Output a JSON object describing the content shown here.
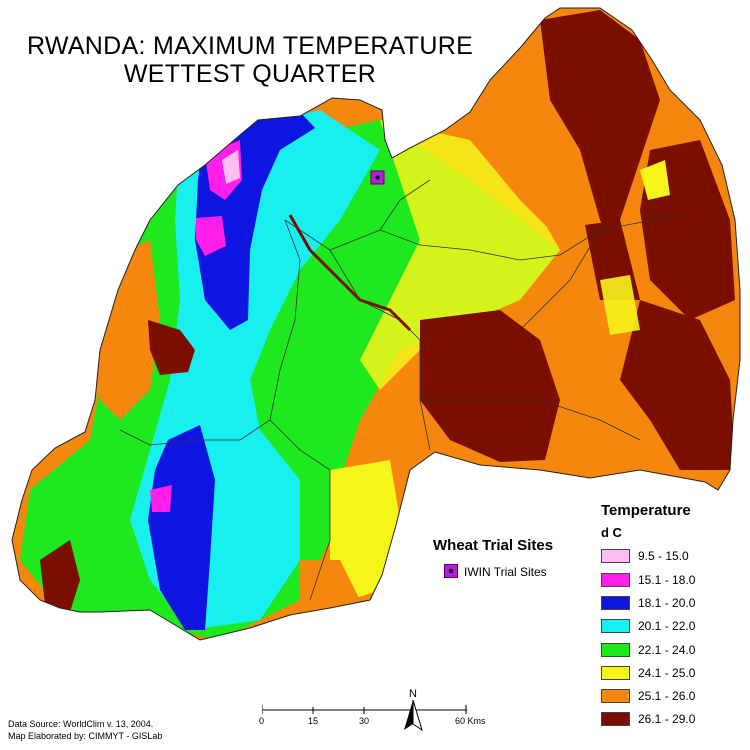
{
  "title_line1": "RWANDA:  MAXIMUM TEMPERATURE",
  "title_line2": "WETTEST QUARTER",
  "wheat_legend": {
    "title": "Wheat Trial Sites",
    "item_label": "IWIN Trial Sites",
    "color": "#b31fd6"
  },
  "temperature_legend": {
    "title": "Temperature",
    "unit": "d C",
    "classes": [
      {
        "label": "9.5 - 15.0",
        "color": "#ffbdf0"
      },
      {
        "label": "15.1 - 18.0",
        "color": "#ff1fe8"
      },
      {
        "label": "18.1 - 20.0",
        "color": "#0f15e0"
      },
      {
        "label": "20.1 - 22.0",
        "color": "#18f0f0"
      },
      {
        "label": "22.1 - 24.0",
        "color": "#1ee81e"
      },
      {
        "label": "24.1 - 25.0",
        "color": "#f5f51a"
      },
      {
        "label": "25.1 - 26.0",
        "color": "#f5870f"
      },
      {
        "label": "26.1 - 29.0",
        "color": "#7a0f00"
      }
    ]
  },
  "scale_bar": {
    "ticks": [
      "0",
      "15",
      "30",
      "60 Kms"
    ]
  },
  "north_label": "N",
  "source_line1": "Data Source: WorldClim v. 13, 2004.",
  "source_line2": "Map Elaborated by: CIMMYT - GISLab"
}
